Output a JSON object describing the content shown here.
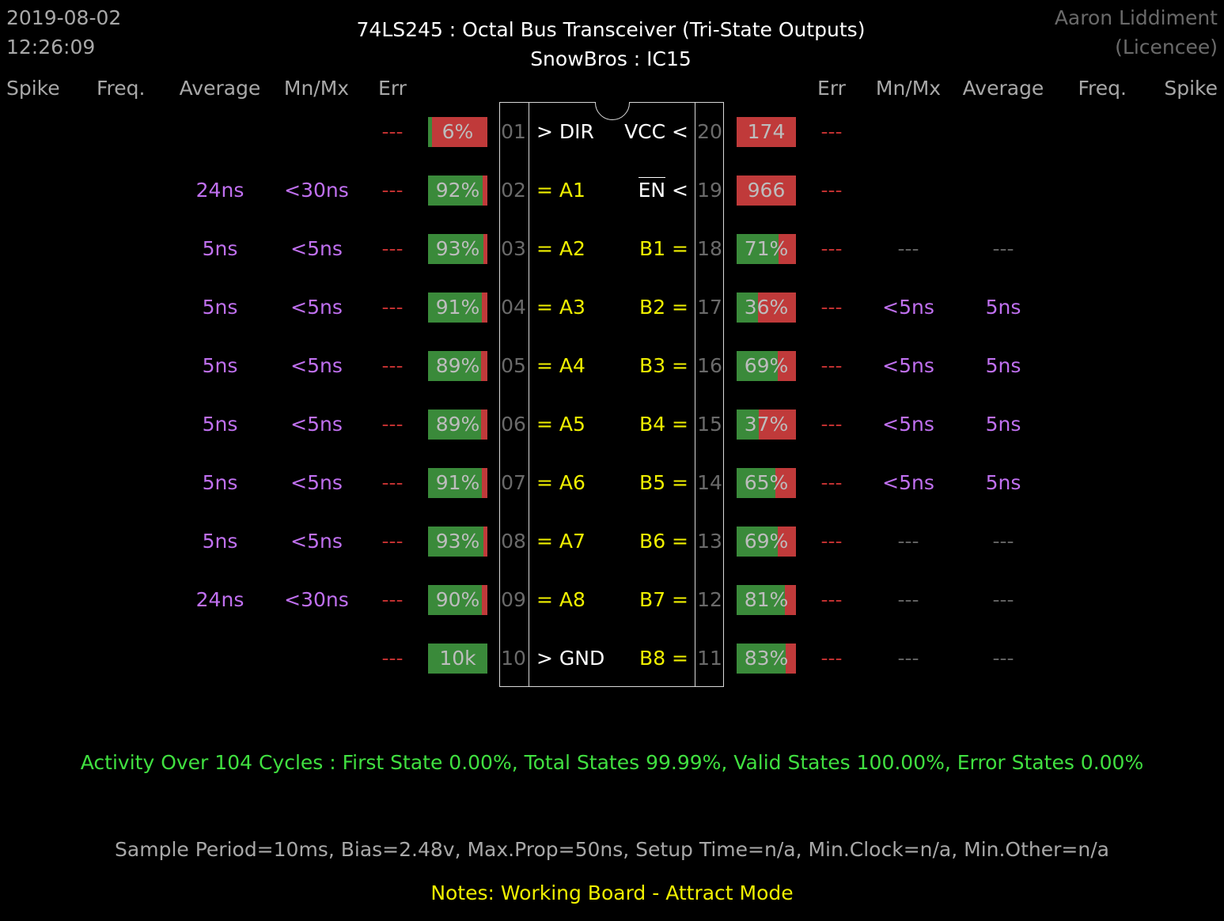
{
  "timestamp": {
    "date": "2019-08-02",
    "time": "12:26:09"
  },
  "title": {
    "line1": "74LS245  :  Octal Bus Transceiver (Tri-State Outputs)",
    "line2": "SnowBros : IC15"
  },
  "licensee": {
    "name": "Aaron Liddiment",
    "role": "(Licencee)"
  },
  "headers_left": {
    "spike": "Spike",
    "freq": "Freq.",
    "average": "Average",
    "mnmx": "Mn/Mx",
    "err": "Err"
  },
  "headers_right": {
    "err": "Err",
    "mnmx": "Mn/Mx",
    "average": "Average",
    "freq": "Freq.",
    "spike": "Spike"
  },
  "left_pins": [
    {
      "num": "01",
      "label": "> DIR",
      "kind": "white",
      "err": "---",
      "mnmx": "",
      "avg": "",
      "bar_text": "6%",
      "level": 0.06
    },
    {
      "num": "02",
      "label": "= A1",
      "kind": "yellow",
      "err": "---",
      "mnmx": "<30ns",
      "avg": "24ns",
      "bar_text": "92%",
      "level": 0.92
    },
    {
      "num": "03",
      "label": "= A2",
      "kind": "yellow",
      "err": "---",
      "mnmx": "<5ns",
      "avg": "5ns",
      "bar_text": "93%",
      "level": 0.93
    },
    {
      "num": "04",
      "label": "= A3",
      "kind": "yellow",
      "err": "---",
      "mnmx": "<5ns",
      "avg": "5ns",
      "bar_text": "91%",
      "level": 0.91
    },
    {
      "num": "05",
      "label": "= A4",
      "kind": "yellow",
      "err": "---",
      "mnmx": "<5ns",
      "avg": "5ns",
      "bar_text": "89%",
      "level": 0.89
    },
    {
      "num": "06",
      "label": "= A5",
      "kind": "yellow",
      "err": "---",
      "mnmx": "<5ns",
      "avg": "5ns",
      "bar_text": "89%",
      "level": 0.89
    },
    {
      "num": "07",
      "label": "= A6",
      "kind": "yellow",
      "err": "---",
      "mnmx": "<5ns",
      "avg": "5ns",
      "bar_text": "91%",
      "level": 0.91
    },
    {
      "num": "08",
      "label": "= A7",
      "kind": "yellow",
      "err": "---",
      "mnmx": "<5ns",
      "avg": "5ns",
      "bar_text": "93%",
      "level": 0.93
    },
    {
      "num": "09",
      "label": "= A8",
      "kind": "yellow",
      "err": "---",
      "mnmx": "<30ns",
      "avg": "24ns",
      "bar_text": "90%",
      "level": 0.9
    },
    {
      "num": "10",
      "label": "> GND",
      "kind": "white",
      "err": "---",
      "mnmx": "",
      "avg": "",
      "bar_text": "10k",
      "level": 1.0
    }
  ],
  "right_pins": [
    {
      "num": "20",
      "label": "VCC <",
      "kind": "white",
      "err": "---",
      "mnmx": "",
      "avg": "",
      "bar_text": "174",
      "level": 0.0
    },
    {
      "num": "19",
      "label": "EN",
      "suffix": " <",
      "kind": "overline",
      "err": "---",
      "mnmx": "",
      "avg": "",
      "bar_text": "966",
      "level": 0.0
    },
    {
      "num": "18",
      "label": "B1 =",
      "kind": "yellow",
      "err": "---",
      "mnmx": "---",
      "avg": "---",
      "bar_text": "71%",
      "level": 0.71
    },
    {
      "num": "17",
      "label": "B2 =",
      "kind": "yellow",
      "err": "---",
      "mnmx": "<5ns",
      "avg": "5ns",
      "bar_text": "36%",
      "level": 0.36
    },
    {
      "num": "16",
      "label": "B3 =",
      "kind": "yellow",
      "err": "---",
      "mnmx": "<5ns",
      "avg": "5ns",
      "bar_text": "69%",
      "level": 0.69
    },
    {
      "num": "15",
      "label": "B4 =",
      "kind": "yellow",
      "err": "---",
      "mnmx": "<5ns",
      "avg": "5ns",
      "bar_text": "37%",
      "level": 0.37
    },
    {
      "num": "14",
      "label": "B5 =",
      "kind": "yellow",
      "err": "---",
      "mnmx": "<5ns",
      "avg": "5ns",
      "bar_text": "65%",
      "level": 0.65
    },
    {
      "num": "13",
      "label": "B6 =",
      "kind": "yellow",
      "err": "---",
      "mnmx": "---",
      "avg": "---",
      "bar_text": "69%",
      "level": 0.69
    },
    {
      "num": "12",
      "label": "B7 =",
      "kind": "yellow",
      "err": "---",
      "mnmx": "---",
      "avg": "---",
      "bar_text": "81%",
      "level": 0.81
    },
    {
      "num": "11",
      "label": "B8 =",
      "kind": "yellow",
      "err": "---",
      "mnmx": "---",
      "avg": "---",
      "bar_text": "83%",
      "level": 0.83
    }
  ],
  "activity": "Activity Over 104 Cycles  :  First State 0.00%,  Total States 99.99%,  Valid States 100.00%,  Error States 0.00%",
  "sample": "Sample Period=10ms,  Bias=2.48v,  Max.Prop=50ns,  Setup Time=n/a,  Min.Clock=n/a,  Min.Other=n/a",
  "notes": "Notes:  Working Board - Attract Mode",
  "colors": {
    "bar_green": "#3a8a3a",
    "bar_red": "#c03a3a",
    "activity": "#40e040",
    "notes": "#f0f000",
    "timing": "#c070f0",
    "err": "#c03030"
  }
}
